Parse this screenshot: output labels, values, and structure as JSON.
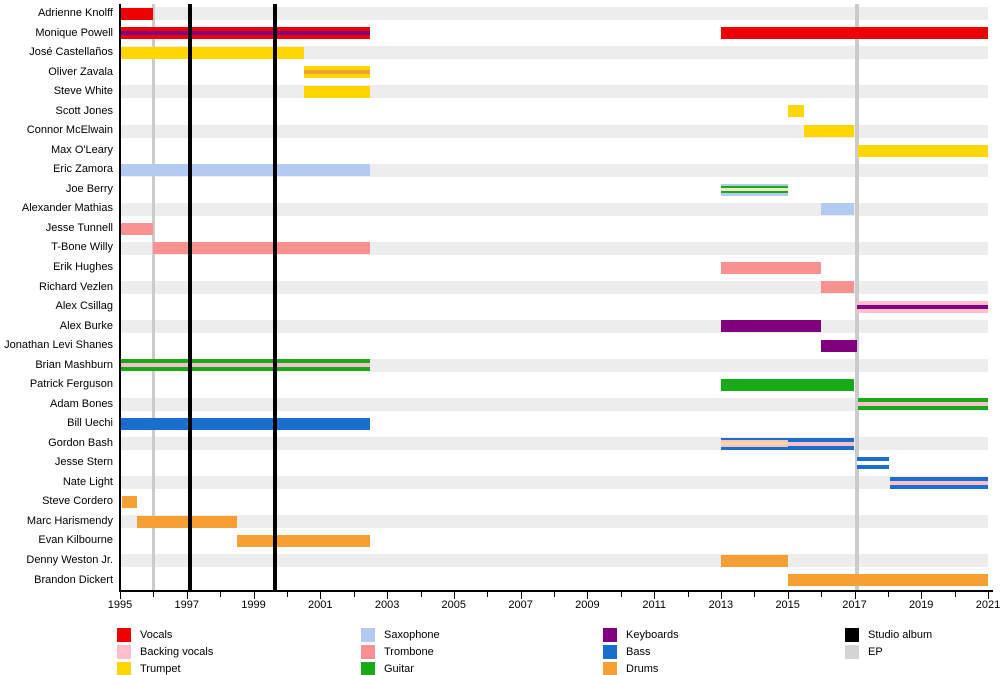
{
  "chart_data": {
    "type": "bar",
    "subtype": "gantt-band-membership-timeline",
    "title": "",
    "xlabel": "",
    "ylabel": "",
    "x_axis": {
      "min": 1995,
      "max": 2021,
      "minor_tick_every_years": 1,
      "tick_labels": [
        "1995",
        "1997",
        "1999",
        "2001",
        "2003",
        "2005",
        "2007",
        "2009",
        "2011",
        "2013",
        "2015",
        "2017",
        "2019",
        "2021"
      ]
    },
    "grid": "alternating-row-stripes",
    "legend_position": "bottom",
    "palette": {
      "vocals": "#ee0000",
      "backing_vocals": "#ffc0cb",
      "trumpet": "#ffd700",
      "saxophone": "#b3cbf2",
      "trombone": "#fa9191",
      "guitar": "#17ab17",
      "keyboards": "#800080",
      "bass": "#1a6fce",
      "drums": "#f6a033",
      "cream": "#f3e7c3",
      "khaki": "#f0dc8c",
      "white": "#ffffff",
      "album": "#000000",
      "ep": "#d4d4d4"
    },
    "studio_album_lines_years": [
      1997.1,
      1999.65
    ],
    "ep_lines_years": [
      1996.0,
      2017.08
    ],
    "members": [
      {
        "name": "Adrienne Knolff",
        "segments": [
          {
            "start": 1995.0,
            "end": 1996.0,
            "layers": [
              "vocals"
            ]
          }
        ]
      },
      {
        "name": "Monique Powell",
        "segments": [
          {
            "start": 1995.0,
            "end": 2002.5,
            "layers": [
              "vocals",
              "keyboards"
            ]
          },
          {
            "start": 2013.0,
            "end": 2021.0,
            "layers": [
              "vocals"
            ]
          }
        ]
      },
      {
        "name": "José Castellaños",
        "segments": [
          {
            "start": 1995.0,
            "end": 2000.5,
            "layers": [
              "trumpet"
            ]
          }
        ]
      },
      {
        "name": "Oliver Zavala",
        "segments": [
          {
            "start": 2000.5,
            "end": 2002.5,
            "layers": [
              "trumpet",
              "drums"
            ]
          }
        ]
      },
      {
        "name": "Steve White",
        "segments": [
          {
            "start": 2000.5,
            "end": 2002.5,
            "layers": [
              "trumpet"
            ]
          }
        ]
      },
      {
        "name": "Scott Jones",
        "segments": [
          {
            "start": 2015.0,
            "end": 2015.5,
            "layers": [
              "trumpet"
            ]
          }
        ]
      },
      {
        "name": "Connor McElwain",
        "segments": [
          {
            "start": 2015.5,
            "end": 2017.0,
            "layers": [
              "trumpet"
            ]
          }
        ]
      },
      {
        "name": "Max O'Leary",
        "segments": [
          {
            "start": 2017.1,
            "end": 2021.0,
            "layers": [
              "trumpet"
            ]
          }
        ]
      },
      {
        "name": "Eric Zamora",
        "segments": [
          {
            "start": 1995.0,
            "end": 2002.5,
            "layers": [
              "saxophone"
            ]
          }
        ]
      },
      {
        "name": "Joe Berry",
        "segments": [
          {
            "start": 2013.0,
            "end": 2015.0,
            "layers": [
              "saxophone",
              "guitar",
              "cream"
            ]
          }
        ]
      },
      {
        "name": "Alexander Mathias",
        "segments": [
          {
            "start": 2016.0,
            "end": 2017.0,
            "layers": [
              "saxophone"
            ]
          }
        ]
      },
      {
        "name": "Jesse Tunnell",
        "segments": [
          {
            "start": 1995.0,
            "end": 1996.0,
            "layers": [
              "trombone"
            ]
          }
        ]
      },
      {
        "name": "T-Bone Willy",
        "segments": [
          {
            "start": 1996.0,
            "end": 2002.5,
            "layers": [
              "trombone"
            ]
          }
        ]
      },
      {
        "name": "Erik Hughes",
        "segments": [
          {
            "start": 2013.0,
            "end": 2016.0,
            "layers": [
              "trombone"
            ]
          }
        ]
      },
      {
        "name": "Richard Vezlen",
        "segments": [
          {
            "start": 2016.0,
            "end": 2017.0,
            "layers": [
              "trombone"
            ]
          }
        ]
      },
      {
        "name": "Alex Csillag",
        "segments": [
          {
            "start": 2017.08,
            "end": 2021.0,
            "layers": [
              "backing_vocals",
              "keyboards"
            ]
          }
        ]
      },
      {
        "name": "Alex Burke",
        "segments": [
          {
            "start": 2013.0,
            "end": 2016.0,
            "layers": [
              "keyboards"
            ]
          }
        ]
      },
      {
        "name": "Jonathan Levi Shanes",
        "segments": [
          {
            "start": 2016.0,
            "end": 2017.08,
            "layers": [
              "keyboards"
            ]
          }
        ]
      },
      {
        "name": "Brian Mashburn",
        "segments": [
          {
            "start": 1995.0,
            "end": 2002.5,
            "layers": [
              "guitar",
              "backing_vocals"
            ]
          }
        ]
      },
      {
        "name": "Patrick Ferguson",
        "segments": [
          {
            "start": 2013.0,
            "end": 2017.0,
            "layers": [
              "guitar"
            ]
          }
        ]
      },
      {
        "name": "Adam Bones",
        "segments": [
          {
            "start": 2017.1,
            "end": 2021.0,
            "layers": [
              "guitar",
              "backing_vocals"
            ]
          }
        ]
      },
      {
        "name": "Bill Uechi",
        "segments": [
          {
            "start": 1995.0,
            "end": 2002.5,
            "layers": [
              "bass"
            ]
          }
        ]
      },
      {
        "name": "Gordon Bash",
        "segments": [
          {
            "start": 2013.0,
            "end": 2015.0,
            "layers": [
              "bass",
              "backing_vocals",
              "khaki"
            ]
          },
          {
            "start": 2015.0,
            "end": 2017.0,
            "layers": [
              "bass",
              "backing_vocals"
            ]
          }
        ]
      },
      {
        "name": "Jesse Stern",
        "segments": [
          {
            "start": 2017.08,
            "end": 2018.05,
            "layers": [
              "bass",
              "white"
            ]
          }
        ]
      },
      {
        "name": "Nate Light",
        "segments": [
          {
            "start": 2018.05,
            "end": 2021.0,
            "layers": [
              "bass",
              "backing_vocals"
            ]
          }
        ]
      },
      {
        "name": "Steve Cordero",
        "segments": [
          {
            "start": 1995.05,
            "end": 1995.5,
            "layers": [
              "drums"
            ]
          }
        ]
      },
      {
        "name": "Marc Harismendy",
        "segments": [
          {
            "start": 1995.5,
            "end": 1998.5,
            "layers": [
              "drums"
            ]
          }
        ]
      },
      {
        "name": "Evan Kilbourne",
        "segments": [
          {
            "start": 1998.5,
            "end": 2002.5,
            "layers": [
              "drums"
            ]
          }
        ]
      },
      {
        "name": "Denny Weston Jr.",
        "segments": [
          {
            "start": 2013.0,
            "end": 2015.0,
            "layers": [
              "drums"
            ]
          }
        ]
      },
      {
        "name": "Brandon Dickert",
        "segments": [
          {
            "start": 2015.0,
            "end": 2021.0,
            "layers": [
              "drums"
            ]
          }
        ]
      }
    ],
    "legend": {
      "columns": [
        {
          "items": [
            {
              "key": "vocals",
              "label": "Vocals"
            },
            {
              "key": "backing_vocals",
              "label": "Backing vocals"
            },
            {
              "key": "trumpet",
              "label": "Trumpet"
            }
          ]
        },
        {
          "items": [
            {
              "key": "saxophone",
              "label": "Saxophone"
            },
            {
              "key": "trombone",
              "label": "Trombone"
            },
            {
              "key": "guitar",
              "label": "Guitar"
            }
          ]
        },
        {
          "items": [
            {
              "key": "keyboards",
              "label": "Keyboards"
            },
            {
              "key": "bass",
              "label": "Bass"
            },
            {
              "key": "drums",
              "label": "Drums"
            }
          ]
        },
        {
          "items": [
            {
              "key": "album",
              "label": "Studio album"
            },
            {
              "key": "ep",
              "label": "EP"
            }
          ]
        }
      ]
    }
  }
}
